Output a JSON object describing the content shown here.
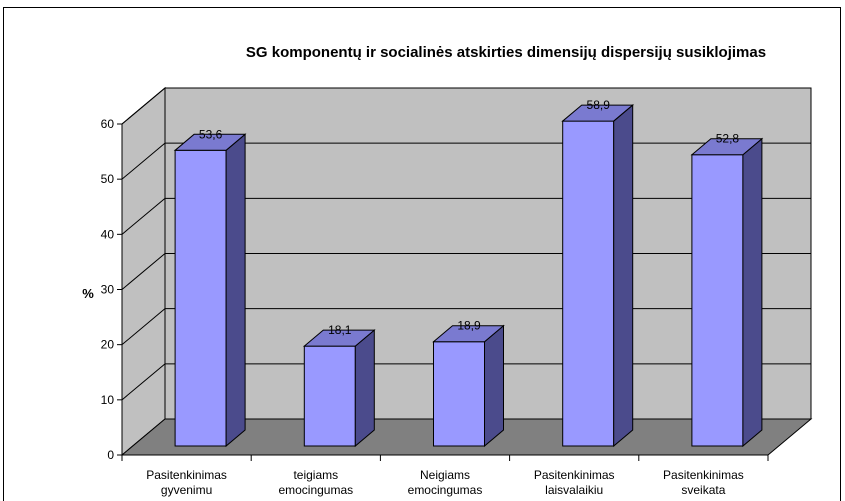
{
  "chart_data": {
    "type": "bar",
    "title": "SG komponentų ir socialinės atskirties dimensijų dispersijų susiklojimas",
    "ylabel": "%",
    "xlabel": "",
    "ylim": [
      0,
      60
    ],
    "yticks": [
      "0",
      "10",
      "20",
      "30",
      "40",
      "50",
      "60"
    ],
    "categories": [
      [
        "Pasitenkinimas",
        "gyvenimu"
      ],
      [
        "teigiams",
        "emocingumas"
      ],
      [
        "Neigiams",
        "emocingumas"
      ],
      [
        "Pasitenkinimas",
        "laisvalaikiu"
      ],
      [
        "Pasitenkinimas",
        "sveikata"
      ]
    ],
    "values": [
      53.6,
      18.1,
      18.9,
      58.9,
      52.8
    ],
    "data_labels": [
      "53,6",
      "18,1",
      "18,9",
      "58,9",
      "52,8"
    ],
    "grid": true,
    "three_d": true,
    "colors": {
      "bar_front": "#9999FF",
      "bar_side": "#4B4B8C",
      "bar_top": "#7A7AD0",
      "back_wall": "#C0C0C0",
      "floor": "#808080",
      "gridline": "#000000"
    }
  }
}
